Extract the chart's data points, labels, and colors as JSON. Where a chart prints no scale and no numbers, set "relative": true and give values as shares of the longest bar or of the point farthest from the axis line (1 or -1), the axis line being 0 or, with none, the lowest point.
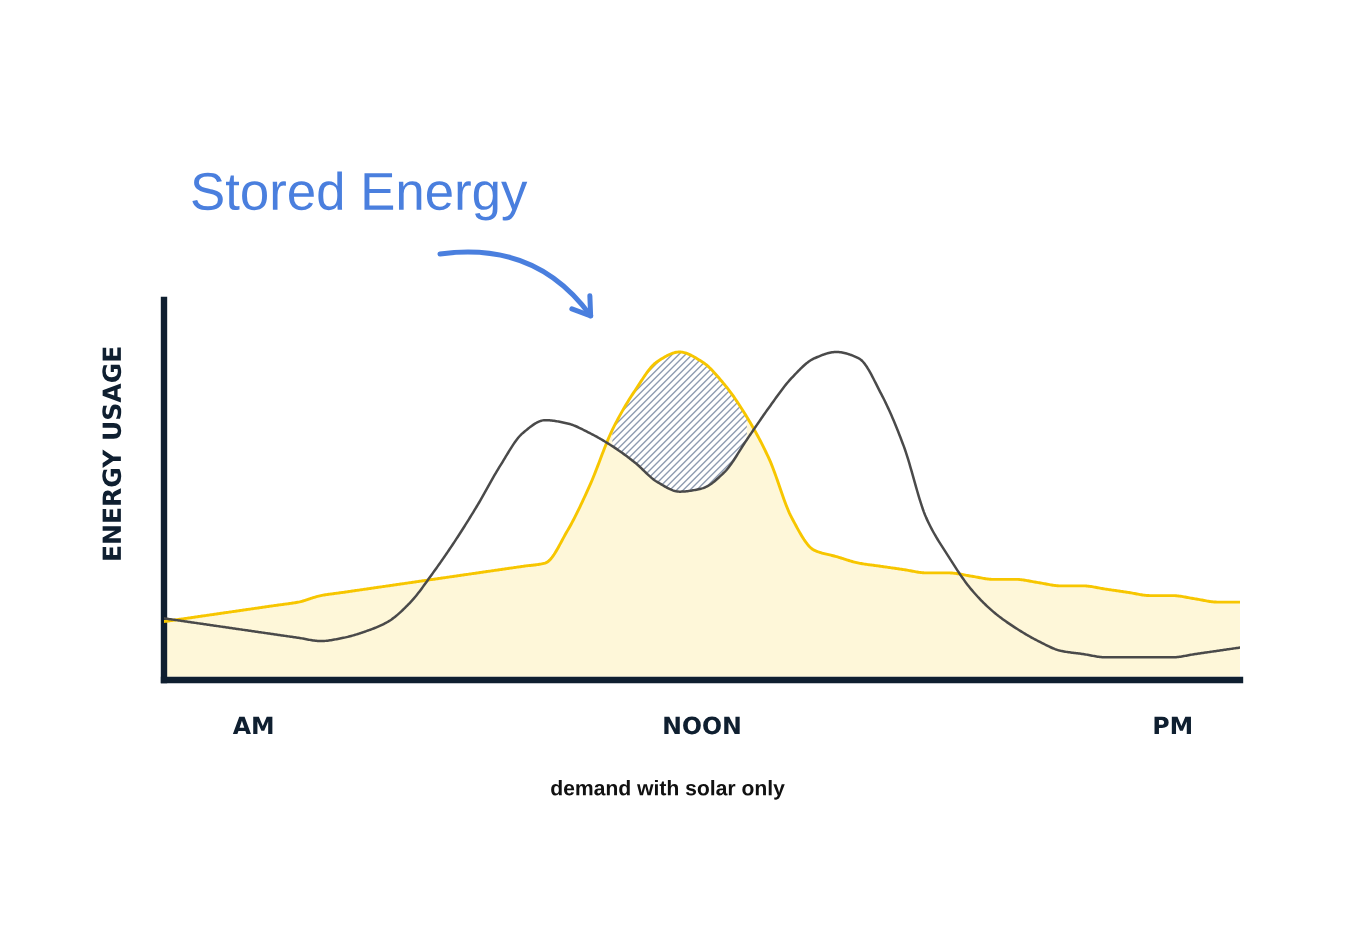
{
  "chart_data": {
    "type": "area",
    "relative": true,
    "tick_labels": "x",
    "xlabel": "demand with solar only",
    "ylabel": "ENERGY USAGE",
    "annotations": [
      "Stored Energy"
    ],
    "categories": [
      null,
      null,
      null,
      null,
      "AM",
      null,
      null,
      null,
      null,
      null,
      null,
      null,
      null,
      null,
      null,
      null,
      null,
      null,
      null,
      null,
      null,
      null,
      null,
      null,
      "NOON",
      null,
      null,
      null,
      null,
      null,
      null,
      null,
      null,
      null,
      null,
      null,
      null,
      null,
      null,
      null,
      null,
      null,
      null,
      null,
      null,
      "PM",
      null,
      null,
      null
    ],
    "series": [
      {
        "color": "#f7c600",
        "values": [
          0.17,
          0.18,
          0.19,
          0.2,
          0.21,
          0.22,
          0.23,
          0.25,
          0.26,
          0.27,
          0.28,
          0.29,
          0.3,
          0.31,
          0.32,
          0.33,
          0.34,
          0.35,
          0.45,
          0.59,
          0.76,
          0.88,
          0.97,
          1.0,
          0.97,
          0.9,
          0.8,
          0.67,
          0.49,
          0.39,
          0.37,
          0.35,
          0.34,
          0.33,
          0.32,
          0.32,
          0.31,
          0.3,
          0.3,
          0.29,
          0.28,
          0.28,
          0.27,
          0.26,
          0.25,
          0.25,
          0.24,
          0.23,
          0.23
        ],
        "lower": [
          null,
          null,
          null,
          null,
          null,
          null,
          null,
          null,
          null,
          null,
          null,
          null,
          null,
          null,
          null,
          null,
          null,
          null,
          null,
          null,
          0.71,
          0.66,
          0.6,
          0.57,
          0.58,
          0.63,
          0.73,
          null,
          null,
          null,
          null,
          null,
          null,
          null,
          null,
          null,
          null,
          null,
          null,
          null,
          null,
          null,
          null,
          null,
          null,
          null,
          null,
          null,
          null
        ],
        "upper": [
          null,
          null,
          null,
          null,
          null,
          null,
          null,
          null,
          null,
          null,
          null,
          null,
          null,
          null,
          null,
          null,
          null,
          null,
          null,
          null,
          0.76,
          0.88,
          0.97,
          1.0,
          0.97,
          0.9,
          0.8,
          null,
          null,
          null,
          null,
          null,
          null,
          null,
          null,
          null,
          null,
          null,
          null,
          null,
          null,
          null,
          null,
          null,
          null,
          null,
          null,
          null,
          null
        ]
      },
      {
        "type": "line",
        "color": "#4a4a4a",
        "values": [
          0.18,
          0.17,
          0.16,
          0.15,
          0.14,
          0.13,
          0.12,
          0.11,
          0.12,
          0.14,
          0.17,
          0.23,
          0.32,
          0.42,
          0.53,
          0.65,
          0.75,
          0.79,
          0.78,
          0.75,
          0.71,
          0.66,
          0.6,
          0.57,
          0.58,
          0.63,
          0.73,
          0.83,
          0.92,
          0.98,
          1.0,
          0.98,
          0.87,
          0.71,
          0.49,
          0.37,
          0.27,
          0.2,
          0.15,
          0.11,
          0.08,
          0.07,
          0.06,
          0.06,
          0.06,
          0.06,
          0.07,
          0.08,
          0.09
        ]
      }
    ]
  }
}
